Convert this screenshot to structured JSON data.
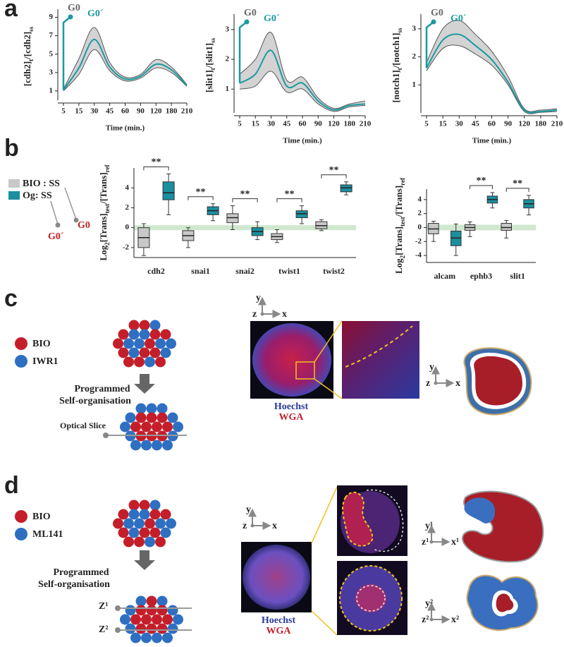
{
  "panel_labels": [
    "a",
    "b",
    "c",
    "d"
  ],
  "chart_data": [
    {
      "type": "line",
      "categories": [
        "5",
        "15",
        "30",
        "45",
        "60",
        "90",
        "120",
        "180",
        "210"
      ],
      "values": [
        1.1,
        3.5,
        6.6,
        3.6,
        2.3,
        2.6,
        3.9,
        3.3,
        1.6
      ],
      "upper": [
        1.2,
        4.5,
        7.9,
        4.1,
        2.5,
        2.8,
        4.4,
        3.6,
        1.7
      ],
      "lower": [
        1.0,
        2.8,
        5.5,
        3.2,
        2.1,
        2.4,
        3.5,
        3.0,
        1.5
      ],
      "color": "#1b9aa0",
      "band_color": "#d3d3d3",
      "ylim": [
        0,
        9.5
      ],
      "yticks": [
        1,
        3,
        5,
        7,
        9
      ],
      "ylabel": [
        "[cdh2]",
        "t",
        "/[cdh2]",
        "ss"
      ],
      "xlabel": "Time (min.)",
      "annotations": [
        "G0",
        "G0´"
      ]
    },
    {
      "type": "line",
      "categories": [
        "5",
        "15",
        "30",
        "45",
        "60",
        "90",
        "120",
        "180",
        "210"
      ],
      "values": [
        1.2,
        1.5,
        2.3,
        1.1,
        1.2,
        0.6,
        0.3,
        0.45,
        0.5
      ],
      "upper": [
        1.5,
        2.0,
        2.9,
        1.3,
        1.4,
        0.7,
        0.35,
        0.5,
        0.6
      ],
      "lower": [
        1.0,
        1.1,
        1.6,
        0.9,
        1.0,
        0.5,
        0.25,
        0.4,
        0.45
      ],
      "color": "#1b9aa0",
      "band_color": "#d3d3d3",
      "ylim": [
        0.2,
        3.4
      ],
      "yticks": [
        1,
        2,
        3
      ],
      "ylabel": [
        "[slit1]",
        "t",
        "/[slit1]",
        "ss"
      ],
      "xlabel": "Time (min.)",
      "annotations": [
        "G0",
        "G0´"
      ]
    },
    {
      "type": "line",
      "categories": [
        "5",
        "15",
        "30",
        "45",
        "60",
        "90",
        "120",
        "180",
        "210"
      ],
      "values": [
        1.6,
        2.6,
        2.8,
        2.4,
        1.9,
        1.1,
        0.1,
        0.05,
        0.1
      ],
      "upper": [
        1.8,
        3.0,
        3.3,
        2.8,
        2.2,
        1.3,
        0.15,
        0.1,
        0.15
      ],
      "lower": [
        1.5,
        2.3,
        2.4,
        2.1,
        1.7,
        1.0,
        0.05,
        0.02,
        0.05
      ],
      "color": "#1b9aa0",
      "band_color": "#d3d3d3",
      "ylim": [
        0,
        3.4
      ],
      "yticks": [
        1,
        2,
        3
      ],
      "ylabel": [
        "[notch1]",
        "t",
        "/[notch1]",
        "ss"
      ],
      "xlabel": "Time (min.)",
      "annotations": [
        "G0",
        "G0´"
      ]
    },
    {
      "type": "box",
      "categories": [
        "cdh2",
        "snai1",
        "snai2",
        "twist1",
        "twist2"
      ],
      "series": [
        {
          "name": "BIO : SS",
          "color": "#c8c8c8",
          "values": [
            [
              -2.8,
              -2,
              -1.0,
              0,
              0.4
            ],
            [
              -2,
              -1.3,
              -0.8,
              -0.3,
              0
            ],
            [
              -0.2,
              0.5,
              1.0,
              1.4,
              2.2
            ],
            [
              -1.5,
              -1.2,
              -0.9,
              -0.6,
              -0.2
            ],
            [
              -0.3,
              -0.1,
              0.2,
              0.6,
              0.8
            ]
          ]
        },
        {
          "name": "Og: SS",
          "color": "#1b8fa0",
          "values": [
            [
              1.3,
              2.8,
              3.5,
              4.6,
              5.4
            ],
            [
              0.7,
              1.3,
              1.7,
              2.1,
              2.4
            ],
            [
              -1.2,
              -0.8,
              -0.4,
              0,
              0.6
            ],
            [
              0.4,
              1.0,
              1.4,
              1.7,
              2.2
            ],
            [
              3.3,
              3.6,
              4.0,
              4.3,
              4.6
            ]
          ]
        }
      ],
      "significance": [
        "**",
        "**",
        "**",
        "**",
        "**"
      ],
      "reference_band": [
        -0.25,
        0.25
      ],
      "reference_color": "#cfe8cf",
      "ylim": [
        -3,
        6
      ],
      "yticks": [
        -2,
        0,
        2,
        4
      ],
      "ylabel": [
        "Log",
        "2",
        "[Trans]",
        "test",
        "/[Trans]",
        "ref"
      ]
    },
    {
      "type": "box",
      "categories": [
        "alcam",
        "ephb3",
        "slit1"
      ],
      "series": [
        {
          "color": "#c8c8c8",
          "values": [
            [
              -2,
              -0.9,
              -0.2,
              0.6,
              0.9
            ],
            [
              -1.3,
              -0.4,
              0,
              0.4,
              0.8
            ],
            [
              -1.5,
              -0.4,
              0,
              0.6,
              1
            ]
          ]
        },
        {
          "color": "#1b8fa0",
          "values": [
            [
              -4,
              -2.6,
              -1.5,
              -0.5,
              0.5
            ],
            [
              2.8,
              3.5,
              4,
              4.5,
              5
            ],
            [
              1.8,
              2.8,
              3.4,
              4,
              4.6
            ]
          ]
        }
      ],
      "significance": [
        null,
        "**",
        "**"
      ],
      "reference_band": [
        -0.4,
        0.4
      ],
      "reference_color": "#cfe8cf",
      "ylim": [
        -5,
        5.5
      ],
      "yticks": [
        -4,
        -2,
        0,
        2,
        4
      ],
      "ylabel": [
        "Log",
        "2",
        "[Trans]",
        "test",
        "/[Trans]",
        "ref"
      ]
    }
  ],
  "panel_b_legend": {
    "markers": [
      "G0´",
      "G0"
    ]
  },
  "panel_c": {
    "legend": [
      "BIO",
      "IWR1"
    ],
    "process": [
      "Programmed",
      "Self-organisation"
    ],
    "slice": "Optical Slice",
    "axes": [
      "y",
      "z",
      "x"
    ],
    "axes_right": [
      "y",
      "z",
      "x"
    ],
    "stains": [
      "Hoechst",
      "WGA"
    ]
  },
  "panel_d": {
    "legend": [
      "BIO",
      "ML141"
    ],
    "process": [
      "Programmed",
      "Self-organisation"
    ],
    "slices": [
      "Z¹",
      "Z²"
    ],
    "axes": [
      "y",
      "z",
      "x"
    ],
    "axes_1": [
      "y¹",
      "z¹",
      "x¹"
    ],
    "axes_2": [
      "y²",
      "z²",
      "x²"
    ],
    "stains": [
      "Hoechst",
      "WGA"
    ]
  }
}
